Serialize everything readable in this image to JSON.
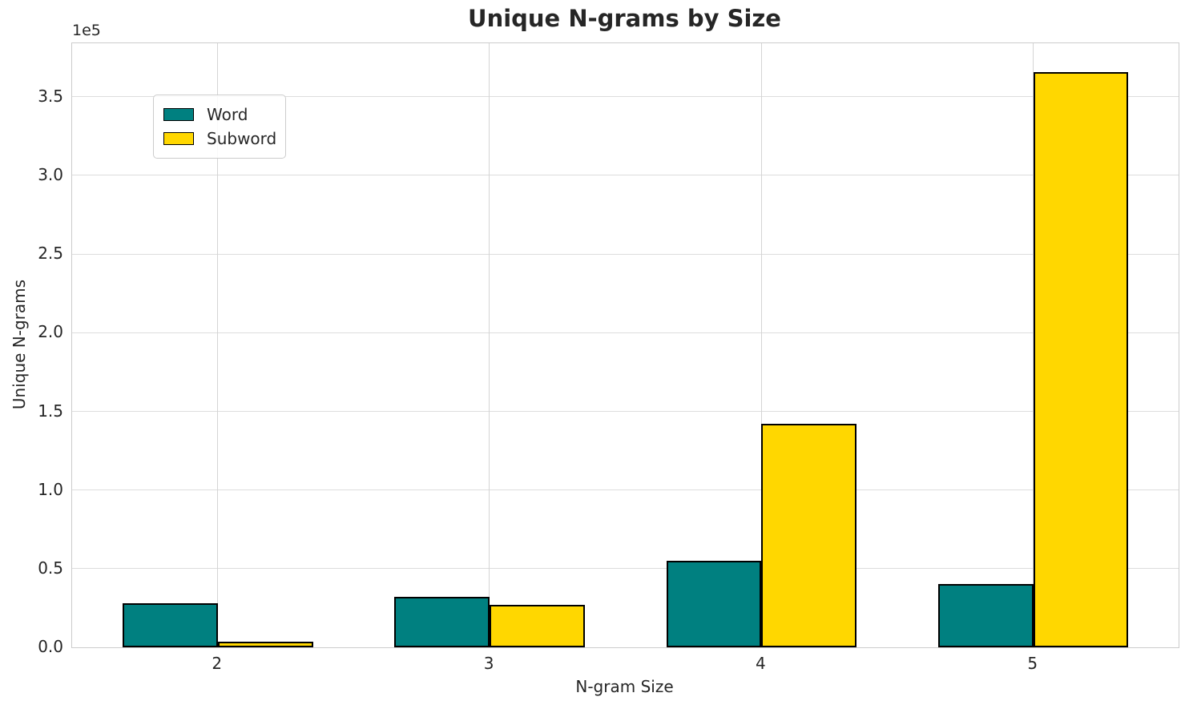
{
  "chart_data": {
    "type": "bar",
    "title": "Unique N-grams by Size",
    "xlabel": "N-gram Size",
    "ylabel": "Unique N-grams",
    "offset_text": "1e5",
    "categories": [
      "2",
      "3",
      "4",
      "5"
    ],
    "series": [
      {
        "name": "Word",
        "color": "#008080",
        "values": [
          28000,
          32000,
          55000,
          40000
        ]
      },
      {
        "name": "Subword",
        "color": "#FFD700",
        "values": [
          3500,
          27000,
          142000,
          366000
        ]
      }
    ],
    "bar_edge_color": "#000000",
    "y_tick_labels": [
      "0.0",
      "0.5",
      "1.0",
      "1.5",
      "2.0",
      "2.5",
      "3.0",
      "3.5"
    ],
    "y_tick_values": [
      0,
      50000,
      100000,
      150000,
      200000,
      250000,
      300000,
      350000
    ],
    "ylim": [
      0,
      384000
    ],
    "grid": "on",
    "legend_position": "upper-left"
  }
}
